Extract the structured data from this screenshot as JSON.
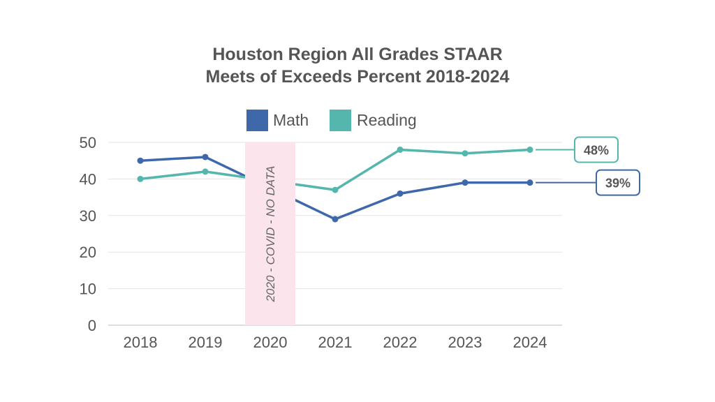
{
  "chart_data": {
    "type": "line",
    "title_lines": [
      "Houston Region All Grades STAAR",
      "Meets of Exceeds Percent 2018-2024"
    ],
    "categories": [
      "2018",
      "2019",
      "2020",
      "2021",
      "2022",
      "2023",
      "2024"
    ],
    "series": [
      {
        "name": "Math",
        "color": "#3e68aa",
        "values": [
          45,
          46,
          null,
          29,
          36,
          39,
          39
        ]
      },
      {
        "name": "Reading",
        "color": "#55b6ad",
        "values": [
          40,
          42,
          null,
          37,
          48,
          47,
          48
        ]
      }
    ],
    "ylim": [
      0,
      50
    ],
    "yticks": [
      0,
      10,
      20,
      30,
      40,
      50
    ],
    "grid": true,
    "legend": "top-center",
    "gap_annotation": {
      "category": "2020",
      "label": "2020 - COVID - NO DATA",
      "color": "#fce4ec"
    },
    "end_labels": [
      {
        "series": "Reading",
        "text": "48%"
      },
      {
        "series": "Math",
        "text": "39%"
      }
    ]
  }
}
